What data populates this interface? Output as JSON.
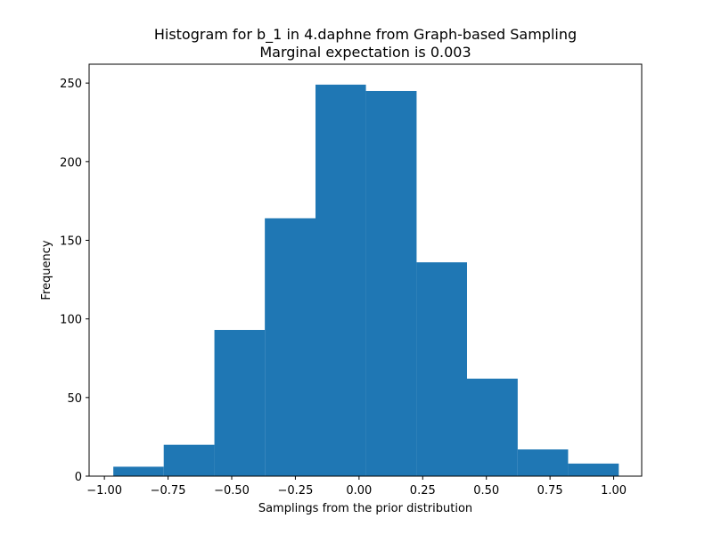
{
  "chart_data": {
    "type": "bar",
    "title_line1": "Histogram for b_1 in 4.daphne from Graph-based Sampling",
    "title_line2": "Marginal expectation is 0.003",
    "xlabel": "Samplings from the prior distribution",
    "ylabel": "Frequency",
    "bin_edges": [
      -0.965,
      -0.767,
      -0.568,
      -0.37,
      -0.171,
      0.027,
      0.226,
      0.424,
      0.623,
      0.821,
      1.02
    ],
    "values": [
      6,
      20,
      93,
      164,
      249,
      245,
      136,
      62,
      17,
      8
    ],
    "xlim": [
      -1.06,
      1.11
    ],
    "ylim": [
      0,
      262
    ],
    "x_ticks": [
      -1.0,
      -0.75,
      -0.5,
      -0.25,
      0.0,
      0.25,
      0.5,
      0.75,
      1.0
    ],
    "x_tick_labels": [
      "−1.00",
      "−0.75",
      "−0.50",
      "−0.25",
      "0.00",
      "0.25",
      "0.50",
      "0.75",
      "1.00"
    ],
    "y_ticks": [
      0,
      50,
      100,
      150,
      200,
      250
    ],
    "y_tick_labels": [
      "0",
      "50",
      "100",
      "150",
      "200",
      "250"
    ],
    "bar_color": "#1f77b4",
    "grid": false,
    "legend": "none"
  }
}
